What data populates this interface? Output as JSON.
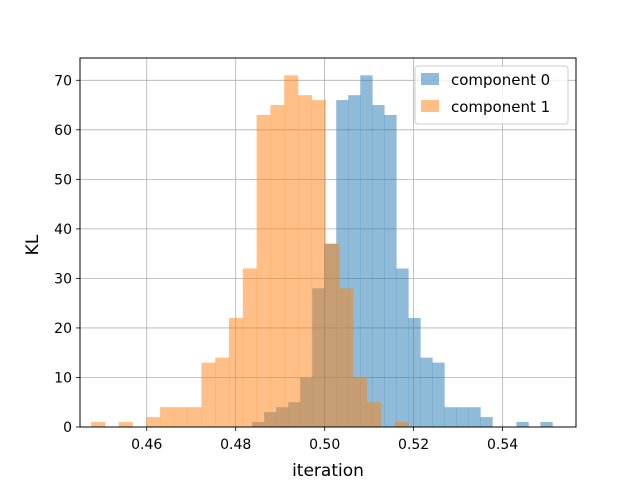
{
  "chart_data": {
    "type": "bar",
    "xlabel": "iteration",
    "ylabel": "KL",
    "xlim": [
      0.445,
      0.5565
    ],
    "ylim": [
      0,
      74.5
    ],
    "xticks": [
      "0.46",
      "0.48",
      "0.50",
      "0.52",
      "0.54"
    ],
    "yticks": [
      "0",
      "10",
      "20",
      "30",
      "40",
      "50",
      "60",
      "70"
    ],
    "grid": true,
    "legend_position": "top-right",
    "bin_width": 0.0027,
    "series": [
      {
        "name": "component 0",
        "color": "#1f77b4",
        "opacity": 0.5,
        "bins": [
          {
            "x": 0.4837,
            "count": 1
          },
          {
            "x": 0.4864,
            "count": 3
          },
          {
            "x": 0.4891,
            "count": 4
          },
          {
            "x": 0.4918,
            "count": 5
          },
          {
            "x": 0.4945,
            "count": 10
          },
          {
            "x": 0.4972,
            "count": 28
          },
          {
            "x": 0.4999,
            "count": 37
          },
          {
            "x": 0.5026,
            "count": 66
          },
          {
            "x": 0.5053,
            "count": 67
          },
          {
            "x": 0.508,
            "count": 71
          },
          {
            "x": 0.5107,
            "count": 65
          },
          {
            "x": 0.5134,
            "count": 63
          },
          {
            "x": 0.5161,
            "count": 32
          },
          {
            "x": 0.5188,
            "count": 22
          },
          {
            "x": 0.5215,
            "count": 14
          },
          {
            "x": 0.5242,
            "count": 13
          },
          {
            "x": 0.5269,
            "count": 4
          },
          {
            "x": 0.5296,
            "count": 4
          },
          {
            "x": 0.5323,
            "count": 4
          },
          {
            "x": 0.535,
            "count": 2
          },
          {
            "x": 0.5431,
            "count": 1
          },
          {
            "x": 0.5485,
            "count": 1
          }
        ]
      },
      {
        "name": "component 1",
        "color": "#ff7f0e",
        "opacity": 0.5,
        "bins": [
          {
            "x": 0.4475,
            "count": 1
          },
          {
            "x": 0.4537,
            "count": 1
          },
          {
            "x": 0.4599,
            "count": 2
          },
          {
            "x": 0.463,
            "count": 4
          },
          {
            "x": 0.4661,
            "count": 4
          },
          {
            "x": 0.4692,
            "count": 4
          },
          {
            "x": 0.4723,
            "count": 13
          },
          {
            "x": 0.4754,
            "count": 14
          },
          {
            "x": 0.4785,
            "count": 22
          },
          {
            "x": 0.4816,
            "count": 32
          },
          {
            "x": 0.4847,
            "count": 63
          },
          {
            "x": 0.4878,
            "count": 65
          },
          {
            "x": 0.4909,
            "count": 71
          },
          {
            "x": 0.494,
            "count": 67
          },
          {
            "x": 0.4971,
            "count": 66
          },
          {
            "x": 0.5002,
            "count": 37
          },
          {
            "x": 0.5033,
            "count": 28
          },
          {
            "x": 0.5064,
            "count": 10
          },
          {
            "x": 0.5095,
            "count": 5
          },
          {
            "x": 0.5126,
            "count": 0
          },
          {
            "x": 0.5157,
            "count": 1
          }
        ]
      }
    ]
  }
}
